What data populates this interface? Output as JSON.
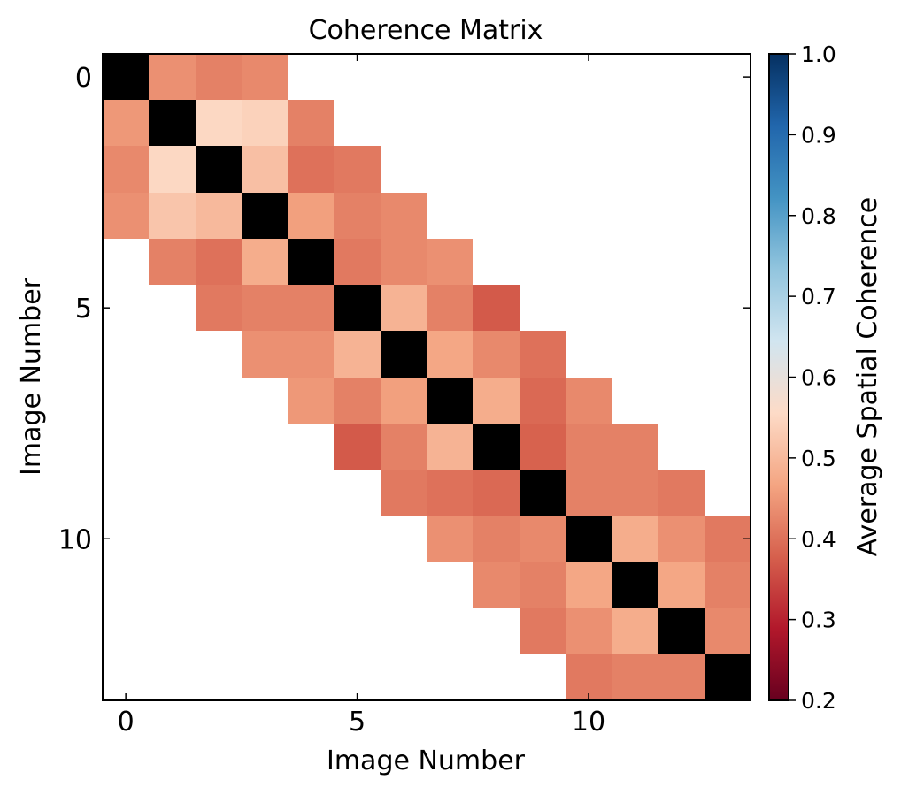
{
  "chart_data": {
    "type": "heatmap",
    "title": "Coherence Matrix",
    "xlabel": "Image Number",
    "ylabel": "Image Number",
    "n": 14,
    "xticks": [
      0,
      5,
      10
    ],
    "yticks": [
      0,
      5,
      10
    ],
    "diagonal_color": "#000000",
    "masked_color": "#ffffff",
    "colorbar": {
      "label": "Average Spatial Coherence",
      "min": 0.2,
      "max": 1.0,
      "ticks": [
        "0.2",
        "0.3",
        "0.4",
        "0.5",
        "0.6",
        "0.7",
        "0.8",
        "0.9",
        "1.0"
      ],
      "colormap": "RdBu",
      "colormap_stops": [
        "#67001f",
        "#b2182b",
        "#d6604d",
        "#f4a582",
        "#fddbc7",
        "#d1e5f0",
        "#92c5de",
        "#4393c3",
        "#2166ac",
        "#053061"
      ]
    },
    "values": [
      [
        null,
        0.44,
        0.42,
        0.43,
        null,
        null,
        null,
        null,
        null,
        null,
        null,
        null,
        null,
        null
      ],
      [
        0.45,
        null,
        0.55,
        0.54,
        0.42,
        null,
        null,
        null,
        null,
        null,
        null,
        null,
        null,
        null
      ],
      [
        0.43,
        0.55,
        null,
        0.51,
        0.4,
        0.41,
        null,
        null,
        null,
        null,
        null,
        null,
        null,
        null
      ],
      [
        0.44,
        0.52,
        0.5,
        null,
        0.46,
        0.42,
        0.43,
        null,
        null,
        null,
        null,
        null,
        null,
        null
      ],
      [
        null,
        0.42,
        0.4,
        0.48,
        null,
        0.41,
        0.43,
        0.44,
        null,
        null,
        null,
        null,
        null,
        null
      ],
      [
        null,
        null,
        0.41,
        0.42,
        0.42,
        null,
        0.49,
        0.42,
        0.37,
        null,
        null,
        null,
        null,
        null
      ],
      [
        null,
        null,
        null,
        0.44,
        0.44,
        0.49,
        null,
        0.47,
        0.43,
        0.4,
        null,
        null,
        null,
        null
      ],
      [
        null,
        null,
        null,
        null,
        0.45,
        0.42,
        0.46,
        null,
        0.48,
        0.39,
        0.43,
        null,
        null,
        null
      ],
      [
        null,
        null,
        null,
        null,
        null,
        0.37,
        0.42,
        0.49,
        null,
        0.38,
        0.42,
        0.42,
        null,
        null
      ],
      [
        null,
        null,
        null,
        null,
        null,
        null,
        0.41,
        0.4,
        0.39,
        null,
        0.42,
        0.42,
        0.41,
        null
      ],
      [
        null,
        null,
        null,
        null,
        null,
        null,
        null,
        0.44,
        0.42,
        0.43,
        null,
        0.48,
        0.44,
        0.41
      ],
      [
        null,
        null,
        null,
        null,
        null,
        null,
        null,
        null,
        0.43,
        0.42,
        0.47,
        null,
        0.47,
        0.42
      ],
      [
        null,
        null,
        null,
        null,
        null,
        null,
        null,
        null,
        null,
        0.41,
        0.44,
        0.48,
        null,
        0.43
      ],
      [
        null,
        null,
        null,
        null,
        null,
        null,
        null,
        null,
        null,
        null,
        0.41,
        0.42,
        0.42,
        null
      ]
    ]
  }
}
